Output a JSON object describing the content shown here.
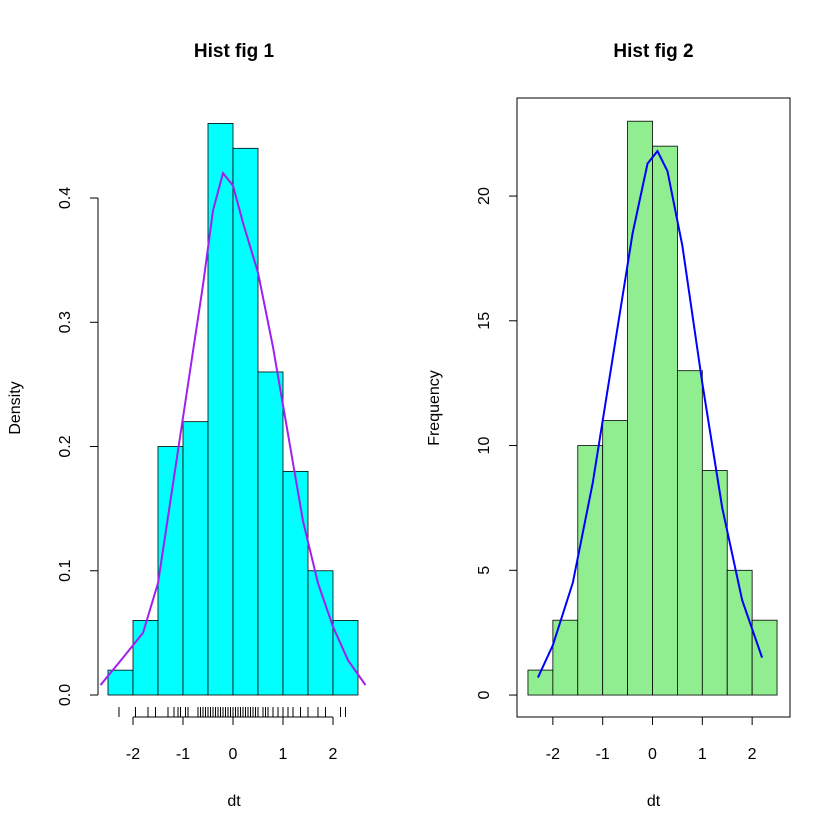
{
  "chart_data": [
    {
      "type": "histogram",
      "title": "Hist fig 1",
      "x_label": "dt",
      "y_label": "Density",
      "bins": [
        -2.5,
        -2,
        -1.5,
        -1,
        -0.5,
        0,
        0.5,
        1,
        1.5,
        2,
        2.5
      ],
      "values": [
        0.02,
        0.06,
        0.2,
        0.22,
        0.46,
        0.44,
        0.26,
        0.18,
        0.1,
        0.06
      ],
      "color": "#00ffff",
      "curve": {
        "color": "#a020f0",
        "x": [
          -2.65,
          -2.2,
          -1.8,
          -1.5,
          -1.2,
          -0.9,
          -0.6,
          -0.4,
          -0.2,
          0,
          0.2,
          0.5,
          0.8,
          1.1,
          1.4,
          1.7,
          2.0,
          2.3,
          2.65
        ],
        "values": [
          0.008,
          0.03,
          0.05,
          0.09,
          0.17,
          0.25,
          0.33,
          0.39,
          0.42,
          0.41,
          0.38,
          0.34,
          0.28,
          0.21,
          0.14,
          0.09,
          0.055,
          0.028,
          0.008
        ]
      },
      "rug": [
        -2.28,
        -1.95,
        -1.7,
        -1.55,
        -1.3,
        -1.18,
        -1.1,
        -1.05,
        -0.95,
        -0.9,
        -0.7,
        -0.65,
        -0.6,
        -0.55,
        -0.5,
        -0.45,
        -0.4,
        -0.35,
        -0.3,
        -0.25,
        -0.2,
        -0.15,
        -0.1,
        -0.05,
        0,
        0.05,
        0.1,
        0.15,
        0.2,
        0.25,
        0.3,
        0.35,
        0.4,
        0.45,
        0.5,
        0.6,
        0.65,
        0.7,
        0.8,
        0.9,
        1.0,
        1.1,
        1.2,
        1.35,
        1.5,
        1.7,
        1.85,
        2.15,
        2.25
      ],
      "xlim": [
        -2.7,
        2.74
      ],
      "ylim": [
        -0.0177,
        0.4805
      ],
      "xticks": [
        -2,
        -1,
        0,
        1,
        2
      ],
      "yticks": [
        {
          "value": 0,
          "label": "0.0"
        },
        0.1,
        0.2,
        0.3,
        0.4
      ],
      "box": false
    },
    {
      "type": "histogram",
      "title": "Hist fig 2",
      "x_label": "dt",
      "y_label": "Frequency",
      "bins": [
        -2.5,
        -2,
        -1.5,
        -1,
        -0.5,
        0,
        0.5,
        1,
        1.5,
        2,
        2.5
      ],
      "values": [
        1,
        3,
        10,
        11,
        23,
        22,
        13,
        9,
        5,
        3
      ],
      "color": "#90ee90",
      "curve": {
        "color": "#0000ff",
        "x": [
          -2.3,
          -2,
          -1.6,
          -1.2,
          -0.8,
          -0.4,
          -0.1,
          0.1,
          0.3,
          0.6,
          1,
          1.4,
          1.8,
          2.2
        ],
        "values": [
          0.7,
          2,
          4.5,
          8.5,
          13.5,
          18.5,
          21.3,
          21.8,
          21,
          18,
          12.5,
          7.5,
          3.8,
          1.5
        ]
      },
      "xlim": [
        -2.72,
        2.76
      ],
      "ylim": [
        -0.88,
        23.93
      ],
      "xticks": [
        -2,
        -1,
        0,
        1,
        2
      ],
      "yticks": [
        0,
        5,
        10,
        15,
        20
      ],
      "box": true
    }
  ]
}
